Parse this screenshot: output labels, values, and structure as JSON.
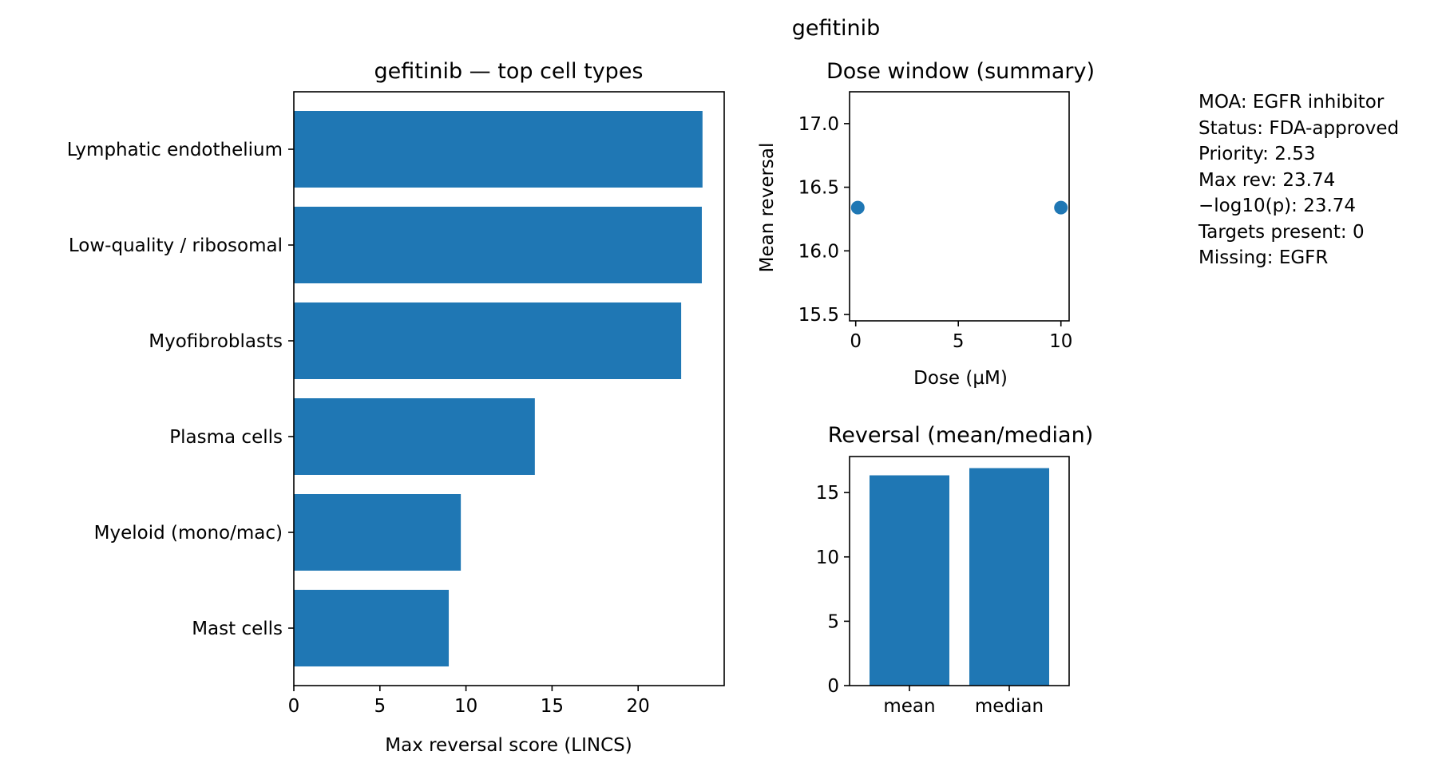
{
  "figure": {
    "suptitle": "gefitinib"
  },
  "info": {
    "lines": [
      "MOA: EGFR inhibitor",
      "Status: FDA-approved",
      "Priority: 2.53",
      "Max rev: 23.74",
      "−log10(p): 23.74",
      "Targets present: 0",
      "Missing: EGFR"
    ]
  },
  "colors": {
    "bar": "#1f77b4",
    "axis": "#000000"
  },
  "chart_data": [
    {
      "type": "bar",
      "orientation": "horizontal",
      "title": "gefitinib — top cell types",
      "xlabel": "Max reversal score (LINCS)",
      "ylabel": "",
      "categories": [
        "Lymphatic endothelium",
        "Low-quality / ribosomal",
        "Myofibroblasts",
        "Plasma cells",
        "Myeloid (mono/mac)",
        "Mast cells"
      ],
      "values": [
        23.74,
        23.7,
        22.5,
        14.0,
        9.7,
        9.0
      ],
      "xlim": [
        0,
        25
      ],
      "xticks": [
        0,
        5,
        10,
        15,
        20
      ],
      "grid": false
    },
    {
      "type": "scatter",
      "title": "Dose window (summary)",
      "xlabel": "Dose (µM)",
      "ylabel": "Mean reversal",
      "x": [
        0.1,
        10
      ],
      "y": [
        16.34,
        16.34
      ],
      "xlim": [
        -0.3,
        10.4
      ],
      "ylim": [
        15.45,
        17.25
      ],
      "xticks": [
        0,
        5,
        10
      ],
      "yticks": [
        15.5,
        16.0,
        16.5,
        17.0
      ],
      "ytick_labels": [
        "15.5",
        "16.0",
        "16.5",
        "17.0"
      ],
      "grid": false
    },
    {
      "type": "bar",
      "title": "Reversal (mean/median)",
      "xlabel": "",
      "ylabel": "",
      "categories": [
        "mean",
        "median"
      ],
      "values": [
        16.34,
        16.9
      ],
      "ylim": [
        0,
        17.8
      ],
      "yticks": [
        0,
        5,
        10,
        15
      ],
      "grid": false
    }
  ]
}
